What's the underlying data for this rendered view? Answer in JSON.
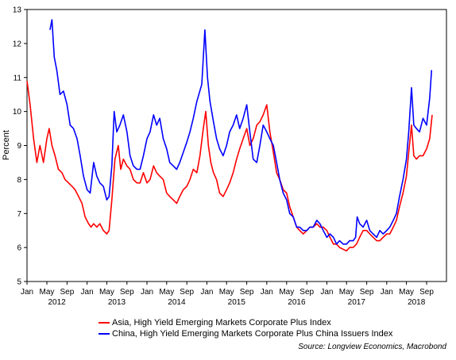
{
  "chart_data": {
    "type": "line",
    "title": "",
    "xlabel": "",
    "ylabel": "Percent",
    "ylim": [
      5,
      13
    ],
    "y_ticks": [
      5,
      6,
      7,
      8,
      9,
      10,
      11,
      12,
      13
    ],
    "xlim": [
      "2012-01-01",
      "2018-12-31"
    ],
    "x_month_ticks": [
      {
        "label": "Jan",
        "date": "2012-01-01"
      },
      {
        "label": "May",
        "date": "2012-05-01"
      },
      {
        "label": "Sep",
        "date": "2012-09-01"
      },
      {
        "label": "Jan",
        "date": "2013-01-01"
      },
      {
        "label": "May",
        "date": "2013-05-01"
      },
      {
        "label": "Sep",
        "date": "2013-09-01"
      },
      {
        "label": "Jan",
        "date": "2014-01-01"
      },
      {
        "label": "May",
        "date": "2014-05-01"
      },
      {
        "label": "Sep",
        "date": "2014-09-01"
      },
      {
        "label": "Jan",
        "date": "2015-01-01"
      },
      {
        "label": "May",
        "date": "2015-05-01"
      },
      {
        "label": "Sep",
        "date": "2015-09-01"
      },
      {
        "label": "Jan",
        "date": "2016-01-01"
      },
      {
        "label": "May",
        "date": "2016-05-01"
      },
      {
        "label": "Sep",
        "date": "2016-09-01"
      },
      {
        "label": "Jan",
        "date": "2017-01-01"
      },
      {
        "label": "May",
        "date": "2017-05-01"
      },
      {
        "label": "Sep",
        "date": "2017-09-01"
      },
      {
        "label": "Jan",
        "date": "2018-01-01"
      },
      {
        "label": "May",
        "date": "2018-05-01"
      },
      {
        "label": "Sep",
        "date": "2018-09-01"
      }
    ],
    "x_year_labels": [
      {
        "label": "2012",
        "date": "2012-07-01"
      },
      {
        "label": "2013",
        "date": "2013-07-01"
      },
      {
        "label": "2014",
        "date": "2014-07-01"
      },
      {
        "label": "2015",
        "date": "2015-07-01"
      },
      {
        "label": "2016",
        "date": "2016-07-01"
      },
      {
        "label": "2017",
        "date": "2017-07-01"
      },
      {
        "label": "2018",
        "date": "2018-07-01"
      }
    ],
    "grid": false,
    "legend_position": "bottom",
    "series": [
      {
        "name": "Asia, High Yield Emerging Markets Corporate Plus Index",
        "color": "#ff0000",
        "points": [
          [
            "2012-01-01",
            10.9
          ],
          [
            "2012-01-20",
            10.2
          ],
          [
            "2012-02-10",
            9.2
          ],
          [
            "2012-03-01",
            8.5
          ],
          [
            "2012-03-20",
            9.0
          ],
          [
            "2012-04-10",
            8.5
          ],
          [
            "2012-05-01",
            9.2
          ],
          [
            "2012-05-15",
            9.5
          ],
          [
            "2012-06-01",
            9.0
          ],
          [
            "2012-06-20",
            8.7
          ],
          [
            "2012-07-10",
            8.3
          ],
          [
            "2012-08-01",
            8.2
          ],
          [
            "2012-08-20",
            8.0
          ],
          [
            "2012-09-10",
            7.9
          ],
          [
            "2012-10-01",
            7.8
          ],
          [
            "2012-10-20",
            7.7
          ],
          [
            "2012-11-10",
            7.5
          ],
          [
            "2012-12-01",
            7.3
          ],
          [
            "2012-12-20",
            6.9
          ],
          [
            "2013-01-10",
            6.7
          ],
          [
            "2013-01-25",
            6.6
          ],
          [
            "2013-02-10",
            6.7
          ],
          [
            "2013-03-01",
            6.6
          ],
          [
            "2013-03-20",
            6.7
          ],
          [
            "2013-04-10",
            6.5
          ],
          [
            "2013-05-01",
            6.4
          ],
          [
            "2013-05-15",
            6.5
          ],
          [
            "2013-06-01",
            7.4
          ],
          [
            "2013-06-20",
            8.6
          ],
          [
            "2013-07-10",
            9.0
          ],
          [
            "2013-07-25",
            8.3
          ],
          [
            "2013-08-10",
            8.6
          ],
          [
            "2013-09-01",
            8.4
          ],
          [
            "2013-09-20",
            8.3
          ],
          [
            "2013-10-10",
            8.0
          ],
          [
            "2013-11-01",
            7.9
          ],
          [
            "2013-11-20",
            7.9
          ],
          [
            "2013-12-10",
            8.2
          ],
          [
            "2014-01-01",
            7.9
          ],
          [
            "2014-01-20",
            8.0
          ],
          [
            "2014-02-10",
            8.4
          ],
          [
            "2014-03-01",
            8.2
          ],
          [
            "2014-03-20",
            8.1
          ],
          [
            "2014-04-10",
            8.0
          ],
          [
            "2014-05-01",
            7.6
          ],
          [
            "2014-05-20",
            7.5
          ],
          [
            "2014-06-10",
            7.4
          ],
          [
            "2014-07-01",
            7.3
          ],
          [
            "2014-07-20",
            7.5
          ],
          [
            "2014-08-10",
            7.7
          ],
          [
            "2014-09-01",
            7.8
          ],
          [
            "2014-09-20",
            8.0
          ],
          [
            "2014-10-10",
            8.3
          ],
          [
            "2014-11-01",
            8.2
          ],
          [
            "2014-11-20",
            8.7
          ],
          [
            "2014-12-10",
            9.5
          ],
          [
            "2014-12-25",
            10.0
          ],
          [
            "2015-01-10",
            9.0
          ],
          [
            "2015-01-25",
            8.5
          ],
          [
            "2015-02-10",
            8.2
          ],
          [
            "2015-03-01",
            8.0
          ],
          [
            "2015-03-20",
            7.6
          ],
          [
            "2015-04-10",
            7.5
          ],
          [
            "2015-05-01",
            7.7
          ],
          [
            "2015-05-20",
            7.9
          ],
          [
            "2015-06-10",
            8.2
          ],
          [
            "2015-07-01",
            8.6
          ],
          [
            "2015-07-20",
            8.9
          ],
          [
            "2015-08-10",
            9.2
          ],
          [
            "2015-09-01",
            9.5
          ],
          [
            "2015-09-20",
            9.0
          ],
          [
            "2015-10-10",
            9.2
          ],
          [
            "2015-11-01",
            9.6
          ],
          [
            "2015-11-20",
            9.7
          ],
          [
            "2015-12-10",
            9.9
          ],
          [
            "2016-01-01",
            10.2
          ],
          [
            "2016-01-20",
            9.4
          ],
          [
            "2016-02-10",
            8.8
          ],
          [
            "2016-03-01",
            8.2
          ],
          [
            "2016-03-20",
            8.0
          ],
          [
            "2016-04-10",
            7.7
          ],
          [
            "2016-05-01",
            7.6
          ],
          [
            "2016-05-20",
            7.2
          ],
          [
            "2016-06-10",
            6.9
          ],
          [
            "2016-07-01",
            6.6
          ],
          [
            "2016-07-20",
            6.5
          ],
          [
            "2016-08-10",
            6.4
          ],
          [
            "2016-09-01",
            6.5
          ],
          [
            "2016-09-20",
            6.6
          ],
          [
            "2016-10-10",
            6.6
          ],
          [
            "2016-11-01",
            6.7
          ],
          [
            "2016-11-20",
            6.6
          ],
          [
            "2016-12-10",
            6.6
          ],
          [
            "2017-01-01",
            6.5
          ],
          [
            "2017-01-20",
            6.3
          ],
          [
            "2017-02-10",
            6.1
          ],
          [
            "2017-03-01",
            6.1
          ],
          [
            "2017-03-20",
            6.0
          ],
          [
            "2017-04-10",
            5.95
          ],
          [
            "2017-05-01",
            5.9
          ],
          [
            "2017-05-20",
            6.0
          ],
          [
            "2017-06-10",
            6.0
          ],
          [
            "2017-07-01",
            6.1
          ],
          [
            "2017-07-20",
            6.3
          ],
          [
            "2017-08-10",
            6.5
          ],
          [
            "2017-09-01",
            6.5
          ],
          [
            "2017-09-20",
            6.4
          ],
          [
            "2017-10-10",
            6.3
          ],
          [
            "2017-11-01",
            6.2
          ],
          [
            "2017-11-20",
            6.2
          ],
          [
            "2017-12-10",
            6.3
          ],
          [
            "2018-01-01",
            6.4
          ],
          [
            "2018-01-20",
            6.4
          ],
          [
            "2018-02-10",
            6.6
          ],
          [
            "2018-03-01",
            6.8
          ],
          [
            "2018-03-20",
            7.2
          ],
          [
            "2018-04-10",
            7.6
          ],
          [
            "2018-05-01",
            8.1
          ],
          [
            "2018-05-15",
            8.8
          ],
          [
            "2018-06-01",
            9.6
          ],
          [
            "2018-06-15",
            8.7
          ],
          [
            "2018-07-01",
            8.6
          ],
          [
            "2018-07-20",
            8.7
          ],
          [
            "2018-08-10",
            8.7
          ],
          [
            "2018-09-01",
            8.9
          ],
          [
            "2018-09-20",
            9.2
          ],
          [
            "2018-10-05",
            9.9
          ]
        ]
      },
      {
        "name": "China, High Yield Emerging Markets Corporate Plus China Issuers Index",
        "color": "#0000ff",
        "points": [
          [
            "2012-05-20",
            12.4
          ],
          [
            "2012-06-01",
            12.7
          ],
          [
            "2012-06-15",
            11.6
          ],
          [
            "2012-07-01",
            11.2
          ],
          [
            "2012-07-20",
            10.5
          ],
          [
            "2012-08-10",
            10.6
          ],
          [
            "2012-09-01",
            10.2
          ],
          [
            "2012-09-20",
            9.6
          ],
          [
            "2012-10-10",
            9.5
          ],
          [
            "2012-11-01",
            9.2
          ],
          [
            "2012-11-20",
            8.7
          ],
          [
            "2012-12-10",
            8.1
          ],
          [
            "2013-01-01",
            7.7
          ],
          [
            "2013-01-20",
            7.6
          ],
          [
            "2013-02-10",
            8.5
          ],
          [
            "2013-03-01",
            8.1
          ],
          [
            "2013-03-20",
            7.9
          ],
          [
            "2013-04-10",
            7.8
          ],
          [
            "2013-05-01",
            7.4
          ],
          [
            "2013-05-15",
            7.5
          ],
          [
            "2013-06-01",
            8.4
          ],
          [
            "2013-06-15",
            10.0
          ],
          [
            "2013-07-01",
            9.4
          ],
          [
            "2013-07-20",
            9.6
          ],
          [
            "2013-08-10",
            9.9
          ],
          [
            "2013-09-01",
            9.4
          ],
          [
            "2013-09-20",
            8.7
          ],
          [
            "2013-10-10",
            8.4
          ],
          [
            "2013-11-01",
            8.3
          ],
          [
            "2013-11-20",
            8.3
          ],
          [
            "2013-12-10",
            8.7
          ],
          [
            "2014-01-01",
            9.2
          ],
          [
            "2014-01-20",
            9.4
          ],
          [
            "2014-02-10",
            9.9
          ],
          [
            "2014-03-01",
            9.6
          ],
          [
            "2014-03-20",
            9.8
          ],
          [
            "2014-04-10",
            9.2
          ],
          [
            "2014-05-01",
            8.9
          ],
          [
            "2014-05-20",
            8.5
          ],
          [
            "2014-06-10",
            8.4
          ],
          [
            "2014-07-01",
            8.3
          ],
          [
            "2014-07-20",
            8.5
          ],
          [
            "2014-08-10",
            8.8
          ],
          [
            "2014-09-01",
            9.1
          ],
          [
            "2014-09-20",
            9.4
          ],
          [
            "2014-10-10",
            9.8
          ],
          [
            "2014-11-01",
            10.3
          ],
          [
            "2014-12-01",
            10.8
          ],
          [
            "2014-12-20",
            12.4
          ],
          [
            "2015-01-05",
            11.0
          ],
          [
            "2015-01-20",
            10.3
          ],
          [
            "2015-02-10",
            9.7
          ],
          [
            "2015-03-01",
            9.2
          ],
          [
            "2015-03-20",
            8.9
          ],
          [
            "2015-04-10",
            8.7
          ],
          [
            "2015-05-01",
            9.0
          ],
          [
            "2015-05-20",
            9.4
          ],
          [
            "2015-06-10",
            9.6
          ],
          [
            "2015-07-01",
            9.9
          ],
          [
            "2015-07-20",
            9.5
          ],
          [
            "2015-08-10",
            9.8
          ],
          [
            "2015-09-01",
            10.2
          ],
          [
            "2015-09-20",
            9.4
          ],
          [
            "2015-10-10",
            8.6
          ],
          [
            "2015-11-01",
            8.5
          ],
          [
            "2015-11-20",
            9.0
          ],
          [
            "2015-12-10",
            9.6
          ],
          [
            "2016-01-01",
            9.4
          ],
          [
            "2016-01-20",
            9.2
          ],
          [
            "2016-02-10",
            9.0
          ],
          [
            "2016-03-01",
            8.5
          ],
          [
            "2016-03-20",
            8.0
          ],
          [
            "2016-04-10",
            7.6
          ],
          [
            "2016-05-01",
            7.4
          ],
          [
            "2016-05-20",
            7.0
          ],
          [
            "2016-06-10",
            6.9
          ],
          [
            "2016-07-01",
            6.6
          ],
          [
            "2016-07-20",
            6.6
          ],
          [
            "2016-08-10",
            6.5
          ],
          [
            "2016-09-01",
            6.5
          ],
          [
            "2016-09-20",
            6.6
          ],
          [
            "2016-10-10",
            6.6
          ],
          [
            "2016-11-01",
            6.8
          ],
          [
            "2016-11-20",
            6.7
          ],
          [
            "2016-12-10",
            6.5
          ],
          [
            "2017-01-01",
            6.3
          ],
          [
            "2017-01-20",
            6.4
          ],
          [
            "2017-02-10",
            6.3
          ],
          [
            "2017-03-01",
            6.1
          ],
          [
            "2017-03-20",
            6.2
          ],
          [
            "2017-04-10",
            6.1
          ],
          [
            "2017-05-01",
            6.1
          ],
          [
            "2017-05-20",
            6.2
          ],
          [
            "2017-06-10",
            6.2
          ],
          [
            "2017-06-25",
            6.3
          ],
          [
            "2017-07-05",
            6.9
          ],
          [
            "2017-07-20",
            6.7
          ],
          [
            "2017-08-10",
            6.6
          ],
          [
            "2017-09-01",
            6.8
          ],
          [
            "2017-09-20",
            6.5
          ],
          [
            "2017-10-10",
            6.4
          ],
          [
            "2017-11-01",
            6.3
          ],
          [
            "2017-11-20",
            6.5
          ],
          [
            "2017-12-10",
            6.4
          ],
          [
            "2018-01-01",
            6.5
          ],
          [
            "2018-01-20",
            6.6
          ],
          [
            "2018-02-10",
            6.8
          ],
          [
            "2018-03-01",
            7.0
          ],
          [
            "2018-03-20",
            7.5
          ],
          [
            "2018-04-10",
            8.0
          ],
          [
            "2018-05-01",
            8.6
          ],
          [
            "2018-05-15",
            9.4
          ],
          [
            "2018-06-01",
            10.7
          ],
          [
            "2018-06-15",
            9.6
          ],
          [
            "2018-07-01",
            9.5
          ],
          [
            "2018-07-20",
            9.4
          ],
          [
            "2018-08-10",
            9.8
          ],
          [
            "2018-09-01",
            9.6
          ],
          [
            "2018-09-20",
            10.4
          ],
          [
            "2018-10-01",
            11.2
          ],
          [
            "2018-10-05",
            11.2
          ]
        ]
      }
    ],
    "source": "Source: Longview Economics, Macrobond"
  }
}
